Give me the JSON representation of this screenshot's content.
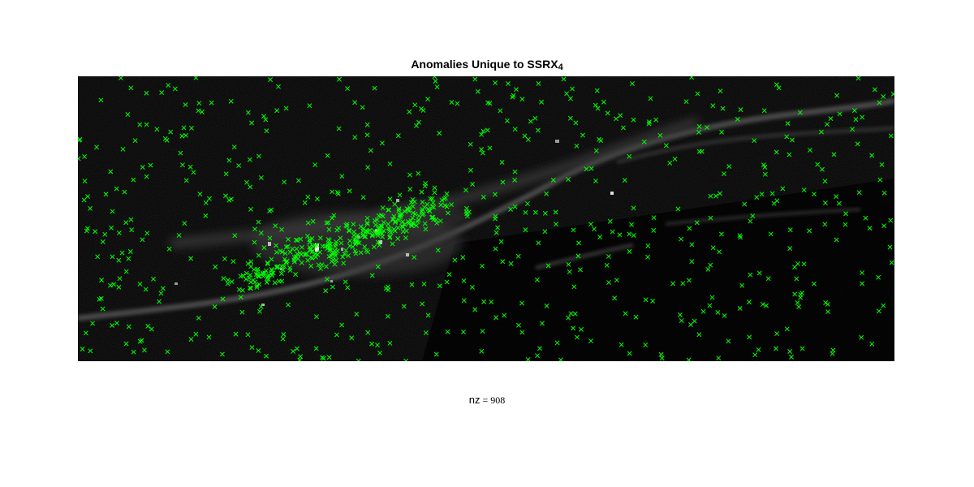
{
  "chart_data": {
    "type": "scatter",
    "title": {
      "main": "Anomalies Unique to SSRX",
      "subscript": "4"
    },
    "xlabel": {
      "name": "nz",
      "equals": " = ",
      "value": "908"
    },
    "nz": 908,
    "background": "grayscale satellite image",
    "marker": "x",
    "marker_color": "#00ff00",
    "background_color": "#000000",
    "axis_visible": false,
    "grid": false,
    "xlim": [
      0,
      1000
    ],
    "ylim": [
      0,
      350
    ],
    "y_direction": "reverse"
  }
}
